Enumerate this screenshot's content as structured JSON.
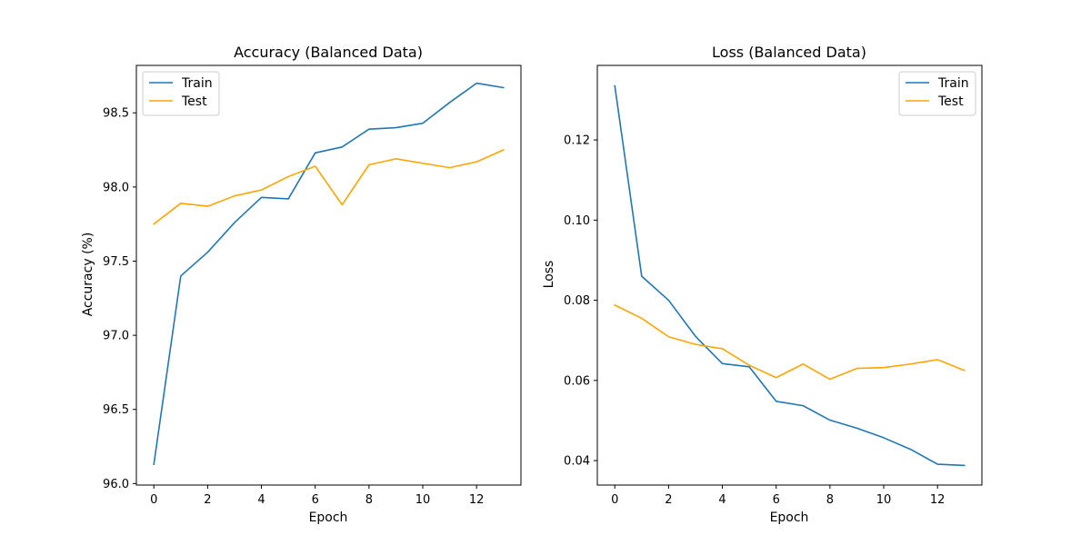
{
  "chart_data": [
    {
      "type": "line",
      "title": "Accuracy (Balanced Data)",
      "xlabel": "Epoch",
      "ylabel": "Accuracy (%)",
      "x": [
        0,
        1,
        2,
        3,
        4,
        5,
        6,
        7,
        8,
        9,
        10,
        11,
        12,
        13
      ],
      "xlim": [
        -0.65,
        13.65
      ],
      "ylim": [
        95.99,
        98.82
      ],
      "xticks": [
        0,
        2,
        4,
        6,
        8,
        10,
        12
      ],
      "xtick_labels": [
        "0",
        "2",
        "4",
        "6",
        "8",
        "10",
        "12"
      ],
      "yticks": [
        96.0,
        96.5,
        97.0,
        97.5,
        98.0,
        98.5
      ],
      "ytick_labels": [
        "96.0",
        "96.5",
        "97.0",
        "97.5",
        "98.0",
        "98.5"
      ],
      "grid": false,
      "legend_position": "top-left",
      "series": [
        {
          "name": "Train",
          "color": "#1f77b4",
          "values": [
            96.13,
            97.4,
            97.56,
            97.76,
            97.93,
            97.92,
            98.23,
            98.27,
            98.39,
            98.4,
            98.43,
            98.57,
            98.7,
            98.67
          ]
        },
        {
          "name": "Test",
          "color": "#ffa500",
          "values": [
            97.75,
            97.89,
            97.87,
            97.94,
            97.98,
            98.07,
            98.14,
            97.88,
            98.15,
            98.19,
            98.16,
            98.13,
            98.17,
            98.25
          ]
        }
      ]
    },
    {
      "type": "line",
      "title": "Loss (Balanced Data)",
      "xlabel": "Epoch",
      "ylabel": "Loss",
      "x": [
        0,
        1,
        2,
        3,
        4,
        5,
        6,
        7,
        8,
        9,
        10,
        11,
        12,
        13
      ],
      "xlim": [
        -0.65,
        13.65
      ],
      "ylim": [
        0.0339,
        0.1386
      ],
      "xticks": [
        0,
        2,
        4,
        6,
        8,
        10,
        12
      ],
      "xtick_labels": [
        "0",
        "2",
        "4",
        "6",
        "8",
        "10",
        "12"
      ],
      "yticks": [
        0.04,
        0.06,
        0.08,
        0.1,
        0.12
      ],
      "ytick_labels": [
        "0.04",
        "0.06",
        "0.08",
        "0.10",
        "0.12"
      ],
      "grid": false,
      "legend_position": "top-right",
      "series": [
        {
          "name": "Train",
          "color": "#1f77b4",
          "values": [
            0.1335,
            0.086,
            0.08,
            0.071,
            0.0642,
            0.0634,
            0.0548,
            0.0537,
            0.0501,
            0.0481,
            0.0457,
            0.0428,
            0.0391,
            0.0388
          ]
        },
        {
          "name": "Test",
          "color": "#ffa500",
          "values": [
            0.0788,
            0.0755,
            0.0709,
            0.069,
            0.0679,
            0.0638,
            0.0607,
            0.0641,
            0.0603,
            0.063,
            0.0632,
            0.0641,
            0.0652,
            0.0625
          ]
        }
      ]
    }
  ]
}
